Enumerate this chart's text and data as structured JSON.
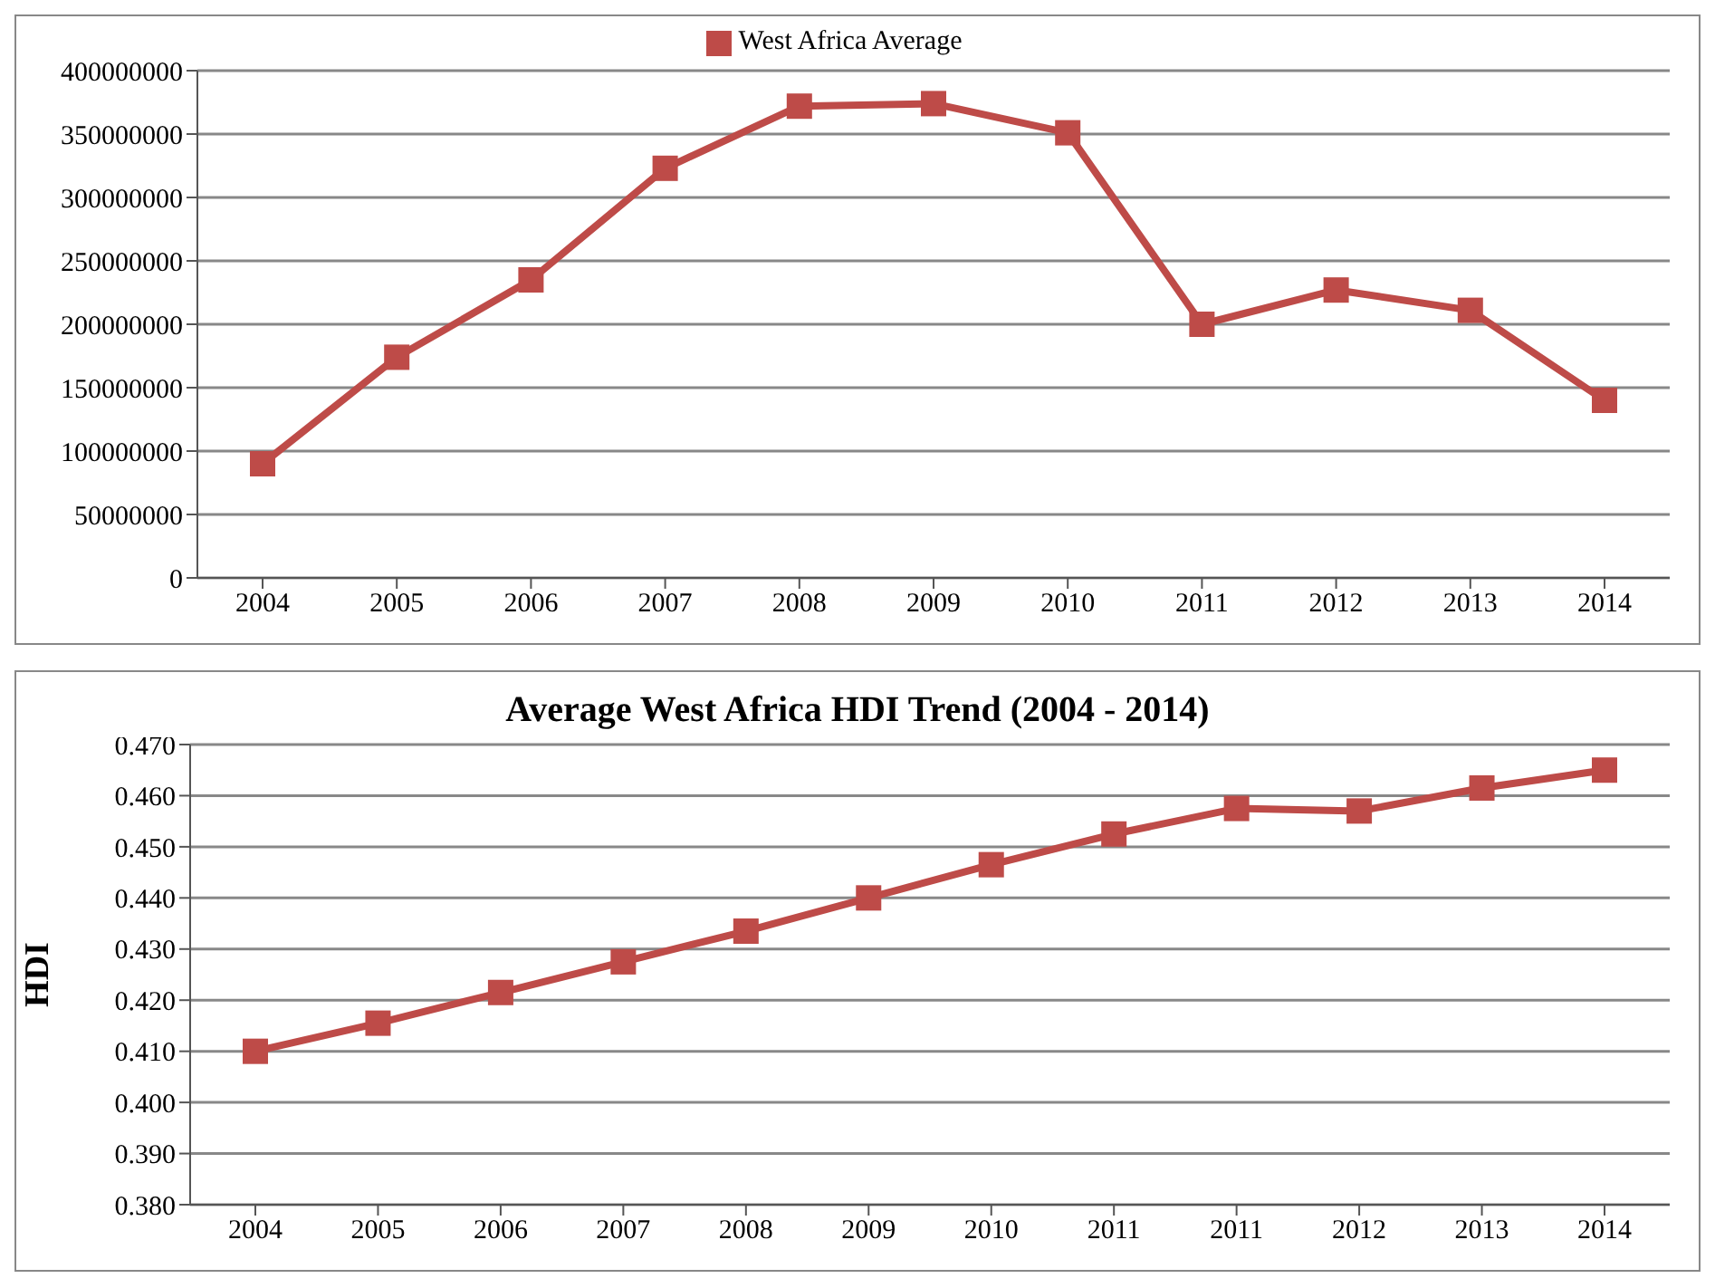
{
  "chart_data": [
    {
      "type": "line",
      "categories": [
        "2004",
        "2005",
        "2006",
        "2007",
        "2008",
        "2009",
        "2010",
        "2011",
        "2012",
        "2013",
        "2014"
      ],
      "series": [
        {
          "name": "West Africa Average",
          "color": "#be4b48",
          "values": [
            90000000,
            174000000,
            235000000,
            323000000,
            372000000,
            374000000,
            351000000,
            200000000,
            227000000,
            211000000,
            140000000
          ]
        }
      ],
      "ylim": [
        0,
        400000000
      ],
      "yticks": [
        0,
        50000000,
        100000000,
        150000000,
        200000000,
        250000000,
        300000000,
        350000000,
        400000000
      ],
      "grid": "y",
      "legend": "top",
      "marker": "square",
      "line_style": "solid"
    },
    {
      "type": "line",
      "title": "Average West Africa HDI Trend (2004 - 2014)",
      "ylabel": "HDI",
      "categories": [
        "2004",
        "2005",
        "2006",
        "2007",
        "2008",
        "2009",
        "2010",
        "2011",
        "2011",
        "2012",
        "2013",
        "2014"
      ],
      "series": [
        {
          "color": "#be4b48",
          "values": [
            0.41,
            0.4155,
            0.4215,
            0.4275,
            0.4335,
            0.44,
            0.4465,
            0.4525,
            0.4575,
            0.457,
            0.4615,
            0.465
          ]
        }
      ],
      "ylim": [
        0.38,
        0.47
      ],
      "yticks": [
        {
          "value": 0.38,
          "label": "0.380"
        },
        {
          "value": 0.39,
          "label": "0.390"
        },
        {
          "value": 0.4,
          "label": "0.400"
        },
        {
          "value": 0.41,
          "label": "0.410"
        },
        {
          "value": 0.42,
          "label": "0.420"
        },
        {
          "value": 0.43,
          "label": "0.430"
        },
        {
          "value": 0.44,
          "label": "0.440"
        },
        {
          "value": 0.45,
          "label": "0.450"
        },
        {
          "value": 0.46,
          "label": "0.460"
        },
        {
          "value": 0.47,
          "label": "0.470"
        }
      ],
      "grid": "y",
      "marker": "square",
      "line_style": "solid"
    }
  ]
}
